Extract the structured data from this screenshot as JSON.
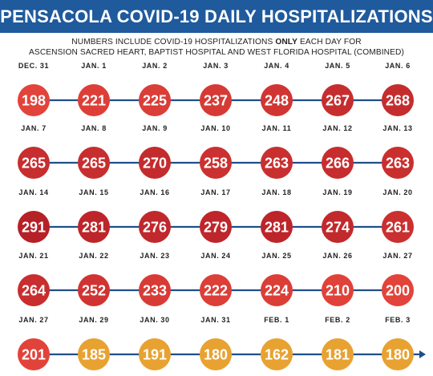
{
  "header": {
    "title": "PENSACOLA COVID-19 DAILY HOSPITALIZATIONS",
    "subtitle_line1_pre": "NUMBERS INCLUDE COVID-19 HOSPITALIZATIONS",
    "subtitle_line1_bold": "ONLY",
    "subtitle_line1_post": "EACH DAY FOR",
    "subtitle_line2": "ASCENSION SACRED HEART, BAPTIST HOSPITAL AND WEST FLORIDA HOSPITAL (COMBINED)"
  },
  "colors": {
    "header_bg": "#1f5a9c",
    "connector": "#1f4f8a",
    "low": "#e8a231",
    "mid": "#e2433a",
    "high": "#b51f27"
  },
  "chart_data": {
    "type": "table",
    "points": [
      {
        "label": "DEC. 31",
        "value": 198
      },
      {
        "label": "JAN. 1",
        "value": 221
      },
      {
        "label": "JAN. 2",
        "value": 225
      },
      {
        "label": "JAN. 3",
        "value": 237
      },
      {
        "label": "JAN. 4",
        "value": 248
      },
      {
        "label": "JAN. 5",
        "value": 267
      },
      {
        "label": "JAN. 6",
        "value": 268
      },
      {
        "label": "JAN. 7",
        "value": 265
      },
      {
        "label": "JAN. 8",
        "value": 265
      },
      {
        "label": "JAN. 9",
        "value": 270
      },
      {
        "label": "JAN. 10",
        "value": 258
      },
      {
        "label": "JAN. 11",
        "value": 263
      },
      {
        "label": "JAN. 12",
        "value": 266
      },
      {
        "label": "JAN. 13",
        "value": 263
      },
      {
        "label": "JAN. 14",
        "value": 291
      },
      {
        "label": "JAN. 15",
        "value": 281
      },
      {
        "label": "JAN. 16",
        "value": 276
      },
      {
        "label": "JAN. 17",
        "value": 279
      },
      {
        "label": "JAN. 18",
        "value": 281
      },
      {
        "label": "JAN. 19",
        "value": 274
      },
      {
        "label": "JAN. 20",
        "value": 261
      },
      {
        "label": "JAN. 21",
        "value": 264
      },
      {
        "label": "JAN. 22",
        "value": 252
      },
      {
        "label": "JAN. 23",
        "value": 233
      },
      {
        "label": "JAN. 24",
        "value": 222
      },
      {
        "label": "JAN. 25",
        "value": 224
      },
      {
        "label": "JAN. 26",
        "value": 210
      },
      {
        "label": "JAN. 27",
        "value": 200
      },
      {
        "label": "JAN. 27",
        "value": 201
      },
      {
        "label": "JAN. 29",
        "value": 185
      },
      {
        "label": "JAN. 30",
        "value": 191
      },
      {
        "label": "JAN. 31",
        "value": 180
      },
      {
        "label": "FEB. 1",
        "value": 162
      },
      {
        "label": "FEB. 2",
        "value": 181
      },
      {
        "label": "FEB. 3",
        "value": 180
      }
    ]
  }
}
